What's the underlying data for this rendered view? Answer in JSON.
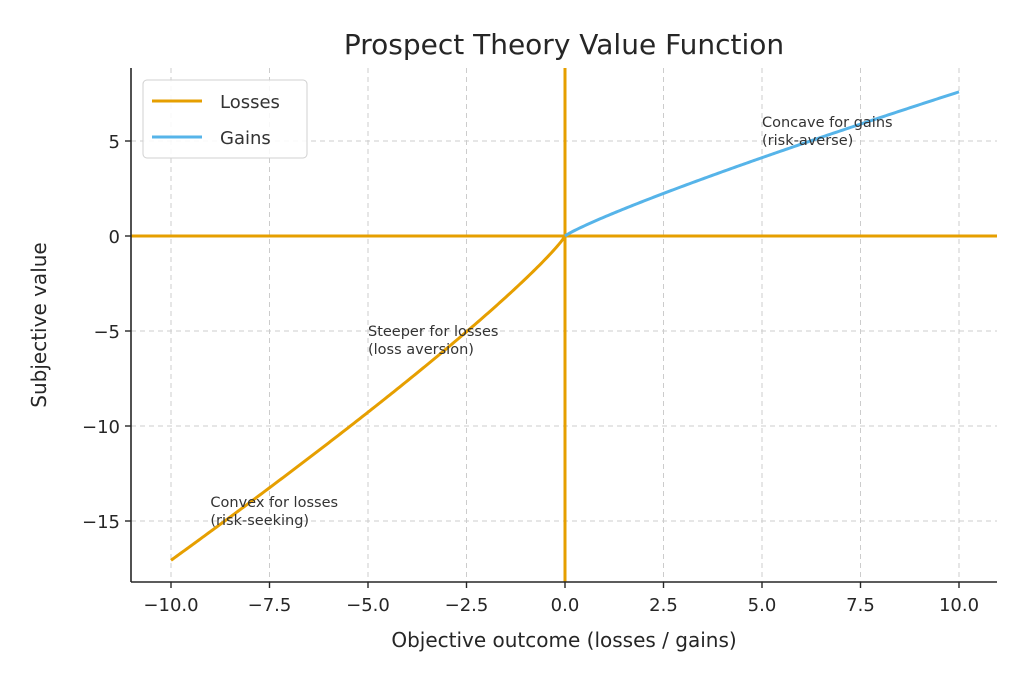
{
  "chart_data": {
    "type": "line",
    "title": "Prospect Theory Value Function",
    "xlabel": "Objective outcome (losses / gains)",
    "ylabel": "Subjective value",
    "xlim": [
      -11,
      11
    ],
    "ylim": [
      -18.4,
      8.9
    ],
    "grid": true,
    "legend_position": "upper left",
    "x_ticks": [
      -10.0,
      -7.5,
      -5.0,
      -2.5,
      0.0,
      2.5,
      5.0,
      7.5,
      10.0
    ],
    "x_tick_labels": [
      "−10.0",
      "−7.5",
      "−5.0",
      "−2.5",
      "0.0",
      "2.5",
      "5.0",
      "7.5",
      "10.0"
    ],
    "y_ticks": [
      5,
      0,
      -5,
      -10,
      -15
    ],
    "y_tick_labels": [
      "5",
      "0",
      "−5",
      "−10",
      "−15"
    ],
    "series": [
      {
        "name": "Losses",
        "color": "#E69F00",
        "formula": "v(x) = -2.25 * (-x)^0.88 for x < 0",
        "x": [
          -10,
          -9,
          -8,
          -7,
          -6,
          -5,
          -4,
          -3,
          -2,
          -1,
          -0.5,
          0
        ],
        "y": [
          -17.07,
          -15.54,
          -14.0,
          -12.44,
          -10.86,
          -9.26,
          -7.65,
          -6.02,
          -4.15,
          -2.25,
          -1.22,
          0
        ]
      },
      {
        "name": "Gains",
        "color": "#56B4E9",
        "formula": "v(x) = x^0.88 for x >= 0",
        "x": [
          0,
          0.5,
          1,
          2,
          3,
          4,
          5,
          6,
          7,
          8,
          9,
          10
        ],
        "y": [
          0,
          0.54,
          1.0,
          1.84,
          2.63,
          3.39,
          4.12,
          4.84,
          5.54,
          6.22,
          6.91,
          7.59
        ]
      }
    ],
    "reference_lines": [
      {
        "orientation": "horizontal",
        "y": 0,
        "color": "#E69F00"
      },
      {
        "orientation": "vertical",
        "x": 0,
        "color": "#E69F00"
      }
    ],
    "annotations": [
      {
        "text_line1": "Concave for gains",
        "text_line2": "(risk-averse)",
        "x": 5,
        "y": 5
      },
      {
        "text_line1": "Steeper for losses",
        "text_line2": "(loss aversion)",
        "x": -5,
        "y": -6
      },
      {
        "text_line1": "Convex for losses",
        "text_line2": "(risk-seeking)",
        "x": -9,
        "y": -15
      }
    ]
  },
  "legend": {
    "items": [
      {
        "label": "Losses",
        "color": "#E69F00"
      },
      {
        "label": "Gains",
        "color": "#56B4E9"
      }
    ]
  }
}
